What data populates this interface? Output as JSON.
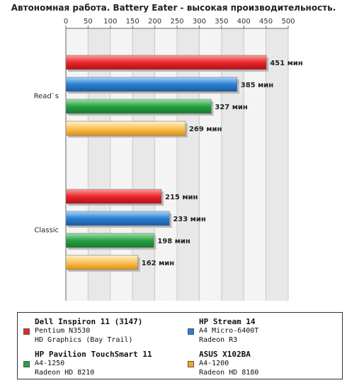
{
  "chart_data": {
    "type": "bar",
    "orientation": "horizontal",
    "title": "Автономная работа. Battery Eater - высокая производительность.",
    "categories": [
      "Read`s",
      "Classic"
    ],
    "xlim": [
      0,
      500
    ],
    "xticks": [
      0,
      50,
      100,
      150,
      200,
      250,
      300,
      350,
      400,
      450,
      500
    ],
    "unit": "мин",
    "grid": true,
    "legend_position": "bottom",
    "series": [
      {
        "name": "Dell Inspiron 11 (3147)",
        "color": "#e8262b",
        "values": [
          451,
          215
        ],
        "details": [
          "Pentium N3530",
          "HD Graphics (Bay Trail)"
        ]
      },
      {
        "name": "HP Stream 14",
        "color": "#2b7fd0",
        "values": [
          385,
          233
        ],
        "details": [
          "A4 Micro-6400T",
          "Radeon R3"
        ]
      },
      {
        "name": "HP Pavilion TouchSmart 11",
        "color": "#27a042",
        "values": [
          327,
          198
        ],
        "details": [
          "A4-1250",
          "Radeon HD 8210"
        ]
      },
      {
        "name": "ASUS X102BA",
        "color": "#f5a623",
        "values": [
          269,
          162
        ],
        "details": [
          "A4-1200",
          "Radeon HD 8180"
        ]
      }
    ],
    "value_labels": [
      [
        "451 мин",
        "215 мин"
      ],
      [
        "385 мин",
        "233 мин"
      ],
      [
        "327 мин",
        "198 мин"
      ],
      [
        "269 мин",
        "162 мин"
      ]
    ]
  }
}
